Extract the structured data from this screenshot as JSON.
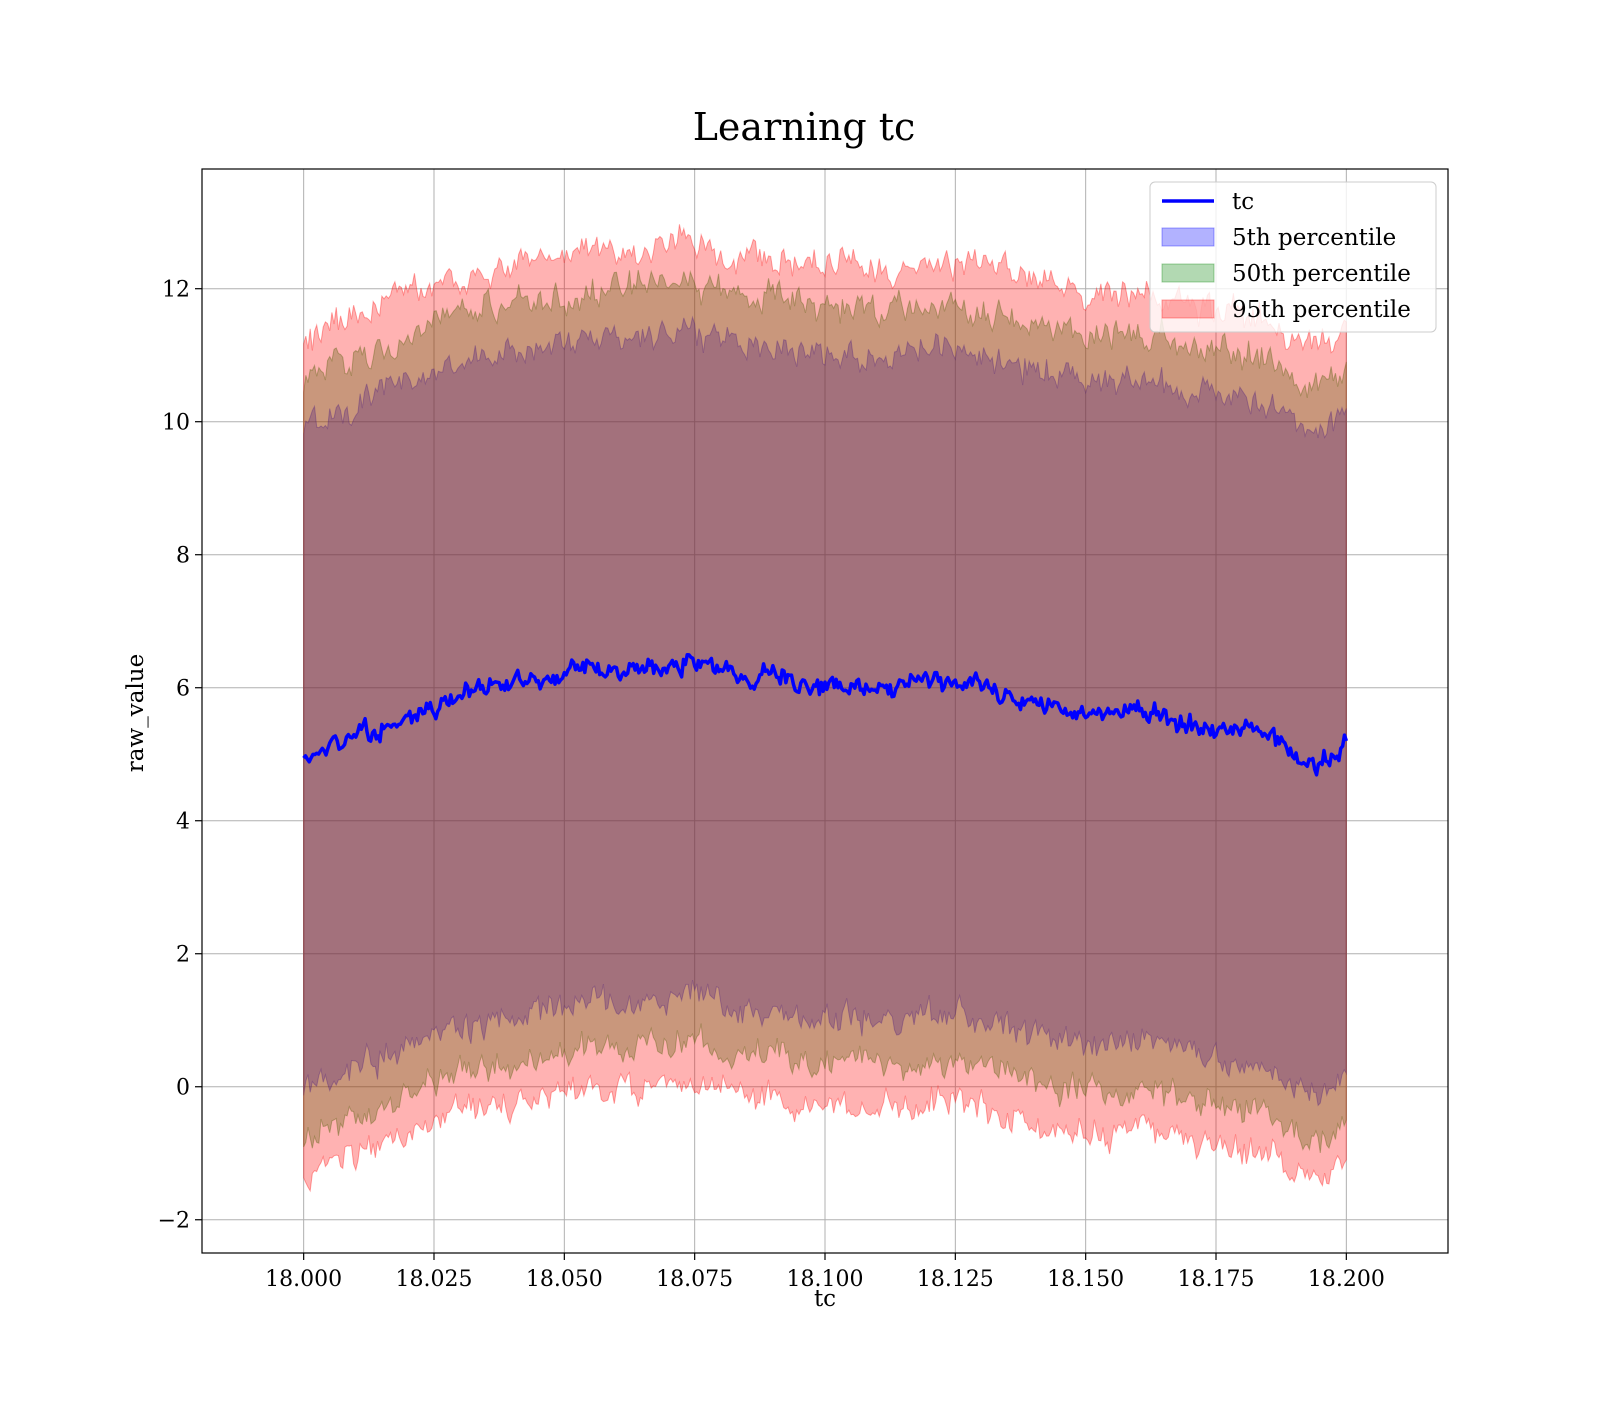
{
  "chart_data": {
    "type": "area",
    "title": "Learning tc",
    "xlabel": "tc",
    "ylabel": "raw_value",
    "xlim": [
      17.9805,
      18.2195
    ],
    "ylim": [
      -2.5,
      13.8
    ],
    "grid": true,
    "legend_position": "top-right",
    "x_ticks": [
      18.0,
      18.025,
      18.05,
      18.075,
      18.1,
      18.125,
      18.15,
      18.175,
      18.2
    ],
    "x_tick_labels": [
      "18.000",
      "18.025",
      "18.050",
      "18.075",
      "18.100",
      "18.125",
      "18.150",
      "18.175",
      "18.200"
    ],
    "y_ticks": [
      -2,
      0,
      2,
      4,
      6,
      8,
      10,
      12
    ],
    "y_tick_labels": [
      "−2",
      "0",
      "2",
      "4",
      "6",
      "8",
      "10",
      "12"
    ],
    "x": [
      18.0,
      18.005,
      18.01,
      18.015,
      18.02,
      18.025,
      18.03,
      18.035,
      18.04,
      18.045,
      18.05,
      18.055,
      18.06,
      18.065,
      18.07,
      18.075,
      18.08,
      18.085,
      18.09,
      18.095,
      18.1,
      18.105,
      18.11,
      18.115,
      18.12,
      18.125,
      18.13,
      18.135,
      18.14,
      18.145,
      18.15,
      18.155,
      18.16,
      18.165,
      18.17,
      18.175,
      18.18,
      18.185,
      18.19,
      18.195,
      18.2
    ],
    "series": [
      {
        "name": "tc",
        "kind": "line",
        "color": "#0000ff",
        "values": [
          4.9,
          5.1,
          5.3,
          5.4,
          5.5,
          5.7,
          5.9,
          6.0,
          6.1,
          6.15,
          6.2,
          6.3,
          6.25,
          6.3,
          6.35,
          6.4,
          6.3,
          6.15,
          6.2,
          6.05,
          6.0,
          6.05,
          6.0,
          6.0,
          6.1,
          6.05,
          6.0,
          5.9,
          5.75,
          5.7,
          5.65,
          5.6,
          5.7,
          5.55,
          5.45,
          5.4,
          5.35,
          5.3,
          4.95,
          4.85,
          5.2
        ]
      },
      {
        "name": "5th percentile",
        "kind": "band",
        "color": "#0000ff",
        "opacity": 0.3,
        "lower": [
          -0.1,
          0.1,
          0.3,
          0.5,
          0.6,
          0.75,
          0.9,
          1.0,
          1.05,
          1.1,
          1.2,
          1.3,
          1.25,
          1.3,
          1.35,
          1.4,
          1.3,
          1.15,
          1.2,
          1.05,
          1.0,
          1.05,
          1.0,
          1.0,
          1.1,
          1.05,
          1.0,
          0.9,
          0.75,
          0.7,
          0.65,
          0.6,
          0.7,
          0.55,
          0.45,
          0.4,
          0.35,
          0.3,
          -0.05,
          -0.15,
          0.2
        ],
        "upper": [
          9.9,
          10.1,
          10.3,
          10.45,
          10.6,
          10.75,
          10.9,
          11.0,
          11.05,
          11.1,
          11.2,
          11.3,
          11.25,
          11.3,
          11.35,
          11.4,
          11.3,
          11.15,
          11.2,
          11.05,
          11.0,
          11.05,
          11.0,
          11.0,
          11.1,
          11.05,
          11.0,
          10.9,
          10.75,
          10.7,
          10.65,
          10.6,
          10.7,
          10.55,
          10.45,
          10.4,
          10.35,
          10.3,
          9.95,
          9.85,
          10.2
        ]
      },
      {
        "name": "50th percentile",
        "kind": "band",
        "color": "#008000",
        "opacity": 0.3,
        "lower": [
          -0.8,
          -0.6,
          -0.4,
          -0.25,
          -0.1,
          0.05,
          0.2,
          0.3,
          0.35,
          0.4,
          0.5,
          0.6,
          0.55,
          0.6,
          0.65,
          0.7,
          0.6,
          0.45,
          0.5,
          0.35,
          0.3,
          0.35,
          0.3,
          0.3,
          0.4,
          0.35,
          0.3,
          0.2,
          0.05,
          0.0,
          -0.05,
          -0.1,
          0.0,
          -0.15,
          -0.25,
          -0.3,
          -0.35,
          -0.4,
          -0.75,
          -0.85,
          -0.5
        ],
        "upper": [
          10.6,
          10.8,
          11.0,
          11.15,
          11.3,
          11.45,
          11.6,
          11.7,
          11.75,
          11.8,
          11.9,
          12.0,
          11.95,
          12.0,
          12.05,
          12.1,
          12.0,
          11.85,
          11.9,
          11.75,
          11.7,
          11.75,
          11.7,
          11.7,
          11.8,
          11.75,
          11.7,
          11.6,
          11.45,
          11.4,
          11.35,
          11.3,
          11.4,
          11.25,
          11.15,
          11.1,
          11.05,
          11.0,
          10.65,
          10.55,
          10.9
        ]
      },
      {
        "name": "95th percentile",
        "kind": "band",
        "color": "#ff0000",
        "opacity": 0.3,
        "lower": [
          -1.4,
          -1.2,
          -1.0,
          -0.85,
          -0.7,
          -0.55,
          -0.4,
          -0.3,
          -0.25,
          -0.2,
          -0.1,
          0.0,
          -0.05,
          0.0,
          0.05,
          0.1,
          0.0,
          -0.15,
          -0.1,
          -0.25,
          -0.3,
          -0.25,
          -0.3,
          -0.3,
          -0.2,
          -0.25,
          -0.3,
          -0.4,
          -0.55,
          -0.6,
          -0.65,
          -0.7,
          -0.6,
          -0.75,
          -0.85,
          -0.9,
          -0.95,
          -1.0,
          -1.35,
          -1.45,
          -1.1
        ],
        "upper": [
          11.2,
          11.4,
          11.6,
          11.75,
          11.9,
          12.05,
          12.2,
          12.3,
          12.35,
          12.4,
          12.5,
          12.6,
          12.55,
          12.6,
          12.65,
          12.7,
          12.6,
          12.45,
          12.5,
          12.35,
          12.3,
          12.35,
          12.3,
          12.3,
          12.4,
          12.35,
          12.3,
          12.2,
          12.05,
          12.0,
          11.95,
          11.9,
          12.0,
          11.85,
          11.75,
          11.7,
          11.65,
          11.6,
          11.25,
          11.15,
          11.5
        ]
      }
    ]
  }
}
